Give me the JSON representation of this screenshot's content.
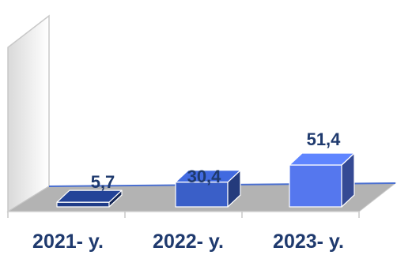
{
  "chart_data": {
    "type": "bar",
    "categories": [
      "2021- y.",
      "2022- y.",
      "2023- y."
    ],
    "values": [
      5.7,
      30.4,
      51.4
    ],
    "value_labels": [
      "5,7",
      "30,4",
      "51,4"
    ],
    "title": "",
    "xlabel": "",
    "ylabel": "",
    "ylim": [
      0,
      60
    ],
    "grid": false,
    "legend": "none",
    "three_d": true,
    "colors": {
      "bars": [
        "#1f3c88",
        "#3a5fc8",
        "#5577ee"
      ],
      "floor": "#b3b3b3",
      "floor_edge": "#4a6fd0",
      "labels": "#1f3a6e"
    }
  }
}
